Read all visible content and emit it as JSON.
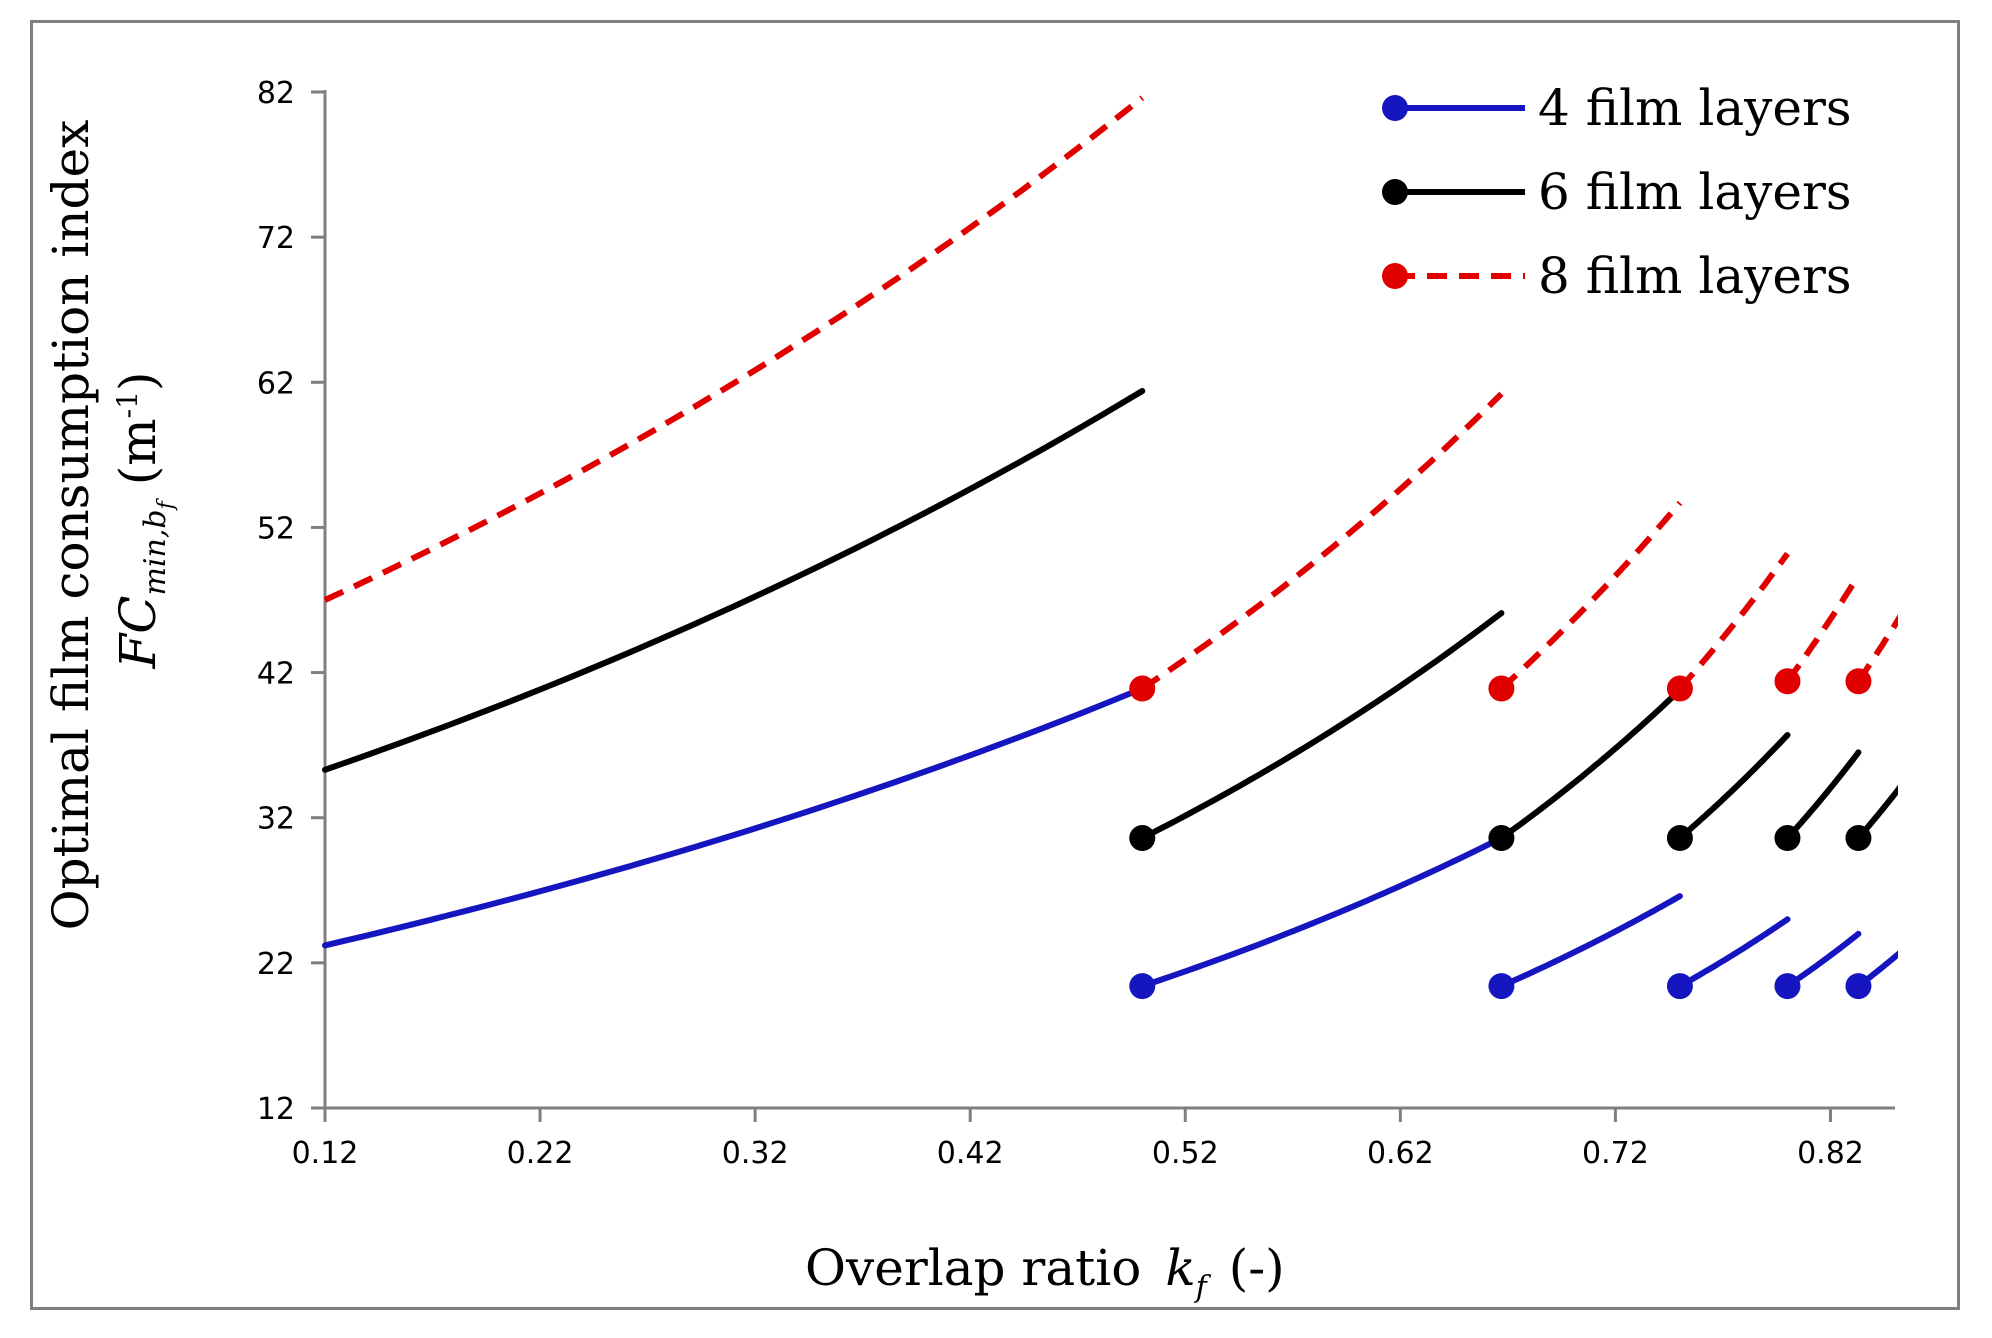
{
  "chart_data": {
    "type": "line",
    "title": "",
    "xlabel": {
      "main": "Overlap ratio",
      "variable": "k",
      "subscript": "f",
      "unit": "(-)"
    },
    "ylabel": {
      "line1": "Optimal film consumption index",
      "variable": "FC",
      "subscript": "min,b",
      "subsubscript": "f",
      "unit_open": "(m",
      "unit_sup": "-1",
      "unit_close": ")"
    },
    "xlim": [
      0.12,
      0.85
    ],
    "ylim": [
      12,
      82
    ],
    "x_ticks": [
      "0.12",
      "0.22",
      "0.32",
      "0.42",
      "0.52",
      "0.62",
      "0.72",
      "0.82"
    ],
    "y_ticks": [
      "82",
      "72",
      "62",
      "52",
      "42",
      "32",
      "22",
      "12"
    ],
    "legend_position": "top-right",
    "series": [
      {
        "name": "4 film layers",
        "color": "#1616c0",
        "dashed": false,
        "segments": [
          {
            "start": 0.12,
            "end": 0.5,
            "value_at_start": 23.2,
            "value_at_end": 40.9,
            "marker_at_start": false
          },
          {
            "start": 0.5,
            "end": 0.667,
            "value_at_start": 20.4,
            "value_at_end": 30.6,
            "marker_at_start": true
          },
          {
            "start": 0.667,
            "end": 0.75,
            "value_at_start": 20.4,
            "value_at_end": 26.6,
            "marker_at_start": true
          },
          {
            "start": 0.75,
            "end": 0.8,
            "value_at_start": 20.4,
            "value_at_end": 25.0,
            "marker_at_start": true
          },
          {
            "start": 0.8,
            "end": 0.833,
            "value_at_start": 20.4,
            "value_at_end": 24.0,
            "marker_at_start": true
          },
          {
            "start": 0.833,
            "end": 0.857,
            "value_at_start": 20.4,
            "value_at_end": 23.3,
            "marker_at_start": true
          }
        ]
      },
      {
        "name": "6 film layers",
        "color": "#000000",
        "dashed": false,
        "segments": [
          {
            "start": 0.12,
            "end": 0.5,
            "value_at_start": 35.3,
            "value_at_end": 61.4,
            "marker_at_start": false
          },
          {
            "start": 0.5,
            "end": 0.667,
            "value_at_start": 30.6,
            "value_at_end": 46.1,
            "marker_at_start": true
          },
          {
            "start": 0.667,
            "end": 0.75,
            "value_at_start": 30.6,
            "value_at_end": 40.8,
            "marker_at_start": true
          },
          {
            "start": 0.75,
            "end": 0.8,
            "value_at_start": 30.6,
            "value_at_end": 37.7,
            "marker_at_start": true
          },
          {
            "start": 0.8,
            "end": 0.833,
            "value_at_start": 30.6,
            "value_at_end": 36.5,
            "marker_at_start": true
          },
          {
            "start": 0.833,
            "end": 0.857,
            "value_at_start": 30.6,
            "value_at_end": 35.0,
            "marker_at_start": true
          }
        ]
      },
      {
        "name": "8 film layers",
        "color": "#e00000",
        "dashed": true,
        "segments": [
          {
            "start": 0.12,
            "end": 0.5,
            "value_at_start": 47.0,
            "value_at_end": 81.6,
            "marker_at_start": false
          },
          {
            "start": 0.5,
            "end": 0.667,
            "value_at_start": 40.9,
            "value_at_end": 61.2,
            "marker_at_start": true
          },
          {
            "start": 0.667,
            "end": 0.75,
            "value_at_start": 40.9,
            "value_at_end": 53.7,
            "marker_at_start": true
          },
          {
            "start": 0.75,
            "end": 0.8,
            "value_at_start": 40.9,
            "value_at_end": 50.2,
            "marker_at_start": true
          },
          {
            "start": 0.8,
            "end": 0.833,
            "value_at_start": 41.4,
            "value_at_end": 48.7,
            "marker_at_start": true
          },
          {
            "start": 0.833,
            "end": 0.857,
            "value_at_start": 41.4,
            "value_at_end": 47.0,
            "marker_at_start": true
          }
        ]
      }
    ]
  }
}
